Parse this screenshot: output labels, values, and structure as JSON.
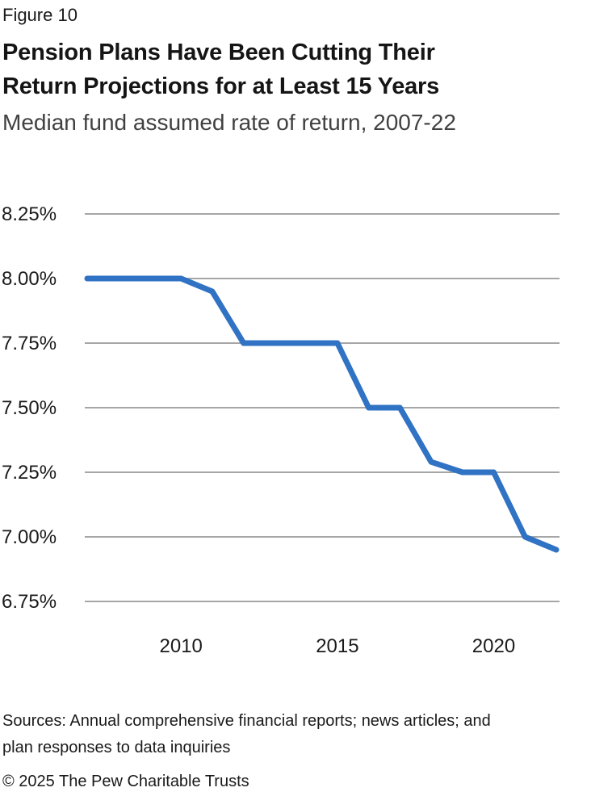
{
  "header": {
    "figure_label": "Figure 10",
    "title_lines": [
      "Pension Plans Have Been Cutting Their",
      "Return Projections for at Least 15 Years"
    ],
    "subtitle": "Median fund assumed rate of return, 2007-22"
  },
  "footer": {
    "sources_lines": [
      "Sources: Annual comprehensive financial reports; news articles; and",
      "plan responses to data inquiries"
    ],
    "copyright": "© 2025 The Pew Charitable Trusts"
  },
  "colors": {
    "line": "#3072C3",
    "grid": "#A6A6A6",
    "text": "#1A1A1A",
    "subtitle_text": "#414141",
    "background": "#FFFFFF"
  },
  "chart_data": {
    "type": "line",
    "title": "Pension Plans Have Been Cutting Their Return Projections for at Least 15 Years",
    "subtitle": "Median fund assumed rate of return, 2007-22",
    "series_name": "Median fund assumed rate of return",
    "x": [
      2007,
      2008,
      2009,
      2010,
      2011,
      2012,
      2013,
      2014,
      2015,
      2016,
      2017,
      2018,
      2019,
      2020,
      2021,
      2022
    ],
    "values": [
      8.0,
      8.0,
      8.0,
      8.0,
      7.95,
      7.75,
      7.75,
      7.75,
      7.75,
      7.5,
      7.5,
      7.29,
      7.25,
      7.25,
      7.0,
      6.95
    ],
    "xlim": [
      2007,
      2022
    ],
    "ylim": [
      6.75,
      8.25
    ],
    "x_ticks": [
      2010,
      2015,
      2020
    ],
    "y_ticks": [
      8.25,
      8.0,
      7.75,
      7.5,
      7.25,
      7.0,
      6.75
    ],
    "y_tick_suffix": "%",
    "grid": "horizontal-only",
    "legend": "none",
    "xlabel": "",
    "ylabel": ""
  }
}
